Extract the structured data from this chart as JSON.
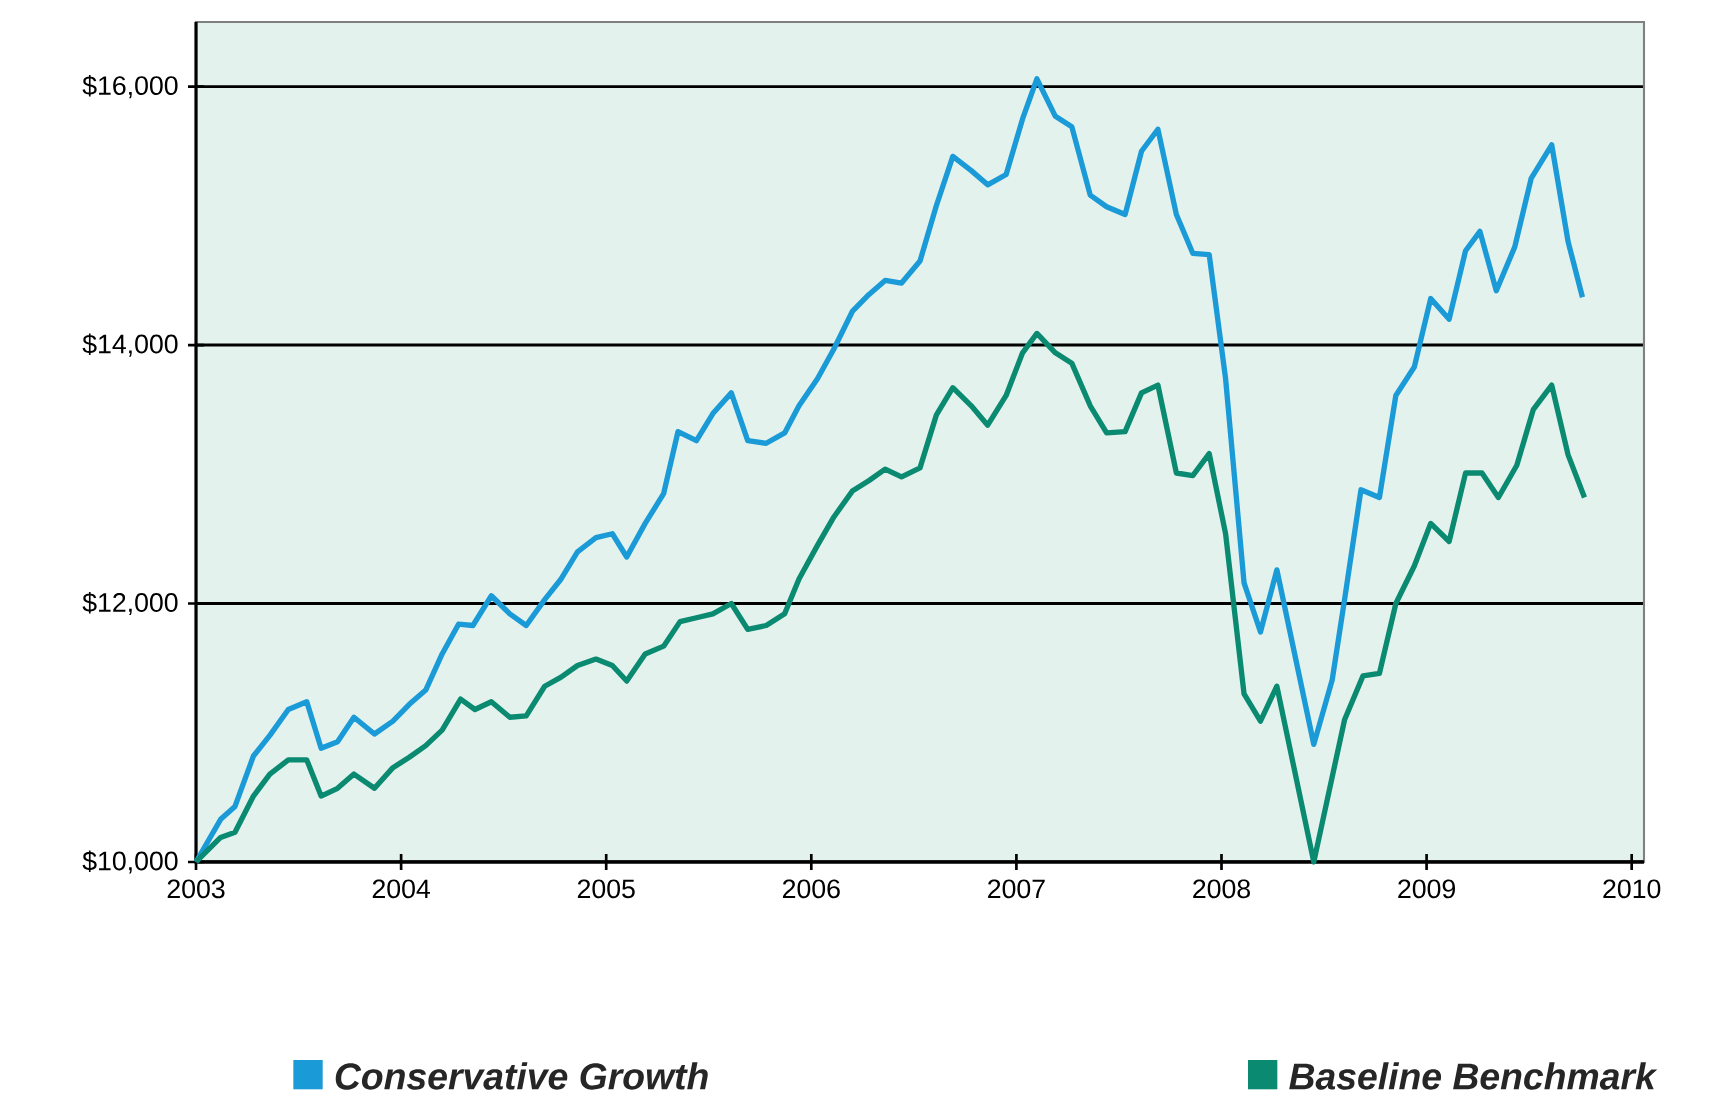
{
  "chart_data": {
    "type": "line",
    "xlim": [
      2003,
      2010.06
    ],
    "ylim": [
      10000,
      16500
    ],
    "xticks": [
      2003,
      2004,
      2005,
      2006,
      2007,
      2008,
      2009,
      2010
    ],
    "yticks": [
      {
        "value": 10000,
        "label": "$10,000"
      },
      {
        "value": 12000,
        "label": "$12,000"
      },
      {
        "value": 14000,
        "label": "$14,000"
      },
      {
        "value": 16000,
        "label": "$16,000"
      }
    ],
    "grid": "y",
    "legend": "bottom",
    "marker": "none",
    "line_style": "solid",
    "series": [
      {
        "name": "Conservative Growth",
        "color": "#1a9ad6",
        "x": [
          2003.0,
          2003.12,
          2003.19,
          2003.28,
          2003.36,
          2003.45,
          2003.54,
          2003.61,
          2003.69,
          2003.77,
          2003.87,
          2003.96,
          2004.04,
          2004.12,
          2004.2,
          2004.28,
          2004.35,
          2004.44,
          2004.53,
          2004.61,
          2004.7,
          2004.78,
          2004.86,
          2004.95,
          2005.03,
          2005.1,
          2005.19,
          2005.28,
          2005.35,
          2005.44,
          2005.52,
          2005.61,
          2005.69,
          2005.78,
          2005.87,
          2005.94,
          2006.03,
          2006.11,
          2006.2,
          2006.28,
          2006.36,
          2006.44,
          2006.53,
          2006.61,
          2006.69,
          2006.78,
          2006.86,
          2006.95,
          2007.03,
          2007.1,
          2007.19,
          2007.27,
          2007.36,
          2007.44,
          2007.53,
          2007.61,
          2007.69,
          2007.78,
          2007.86,
          2007.94,
          2008.02,
          2008.11,
          2008.19,
          2008.27,
          2008.45,
          2008.54,
          2008.6,
          2008.68,
          2008.77,
          2008.85,
          2008.94,
          2009.02,
          2009.11,
          2009.19,
          2009.26,
          2009.34,
          2009.43,
          2009.51,
          2009.61,
          2009.69,
          2009.76
        ],
        "values": [
          10000,
          10330,
          10430,
          10820,
          10980,
          11180,
          11240,
          10880,
          10930,
          11120,
          10990,
          11090,
          11220,
          11330,
          11610,
          11840,
          11830,
          12060,
          11920,
          11830,
          12030,
          12190,
          12400,
          12510,
          12540,
          12360,
          12620,
          12850,
          13330,
          13260,
          13470,
          13630,
          13260,
          13240,
          13320,
          13530,
          13740,
          13970,
          14260,
          14390,
          14500,
          14480,
          14650,
          15080,
          15460,
          15350,
          15240,
          15320,
          15750,
          16060,
          15770,
          15690,
          15160,
          15070,
          15010,
          15500,
          15670,
          15010,
          14710,
          14700,
          13740,
          12160,
          11780,
          12260,
          10910,
          11410,
          12030,
          12880,
          12820,
          13610,
          13830,
          14360,
          14200,
          14730,
          14880,
          14420,
          14760,
          15290,
          15550,
          14800,
          14370
        ]
      },
      {
        "name": "Baseline Benchmark",
        "color": "#0a8a70",
        "x": [
          2003.0,
          2003.12,
          2003.19,
          2003.28,
          2003.36,
          2003.45,
          2003.54,
          2003.61,
          2003.69,
          2003.77,
          2003.87,
          2003.96,
          2004.04,
          2004.12,
          2004.2,
          2004.29,
          2004.36,
          2004.44,
          2004.53,
          2004.61,
          2004.7,
          2004.78,
          2004.86,
          2004.95,
          2005.03,
          2005.1,
          2005.19,
          2005.28,
          2005.36,
          2005.44,
          2005.52,
          2005.61,
          2005.69,
          2005.78,
          2005.87,
          2005.94,
          2006.03,
          2006.11,
          2006.2,
          2006.28,
          2006.36,
          2006.44,
          2006.53,
          2006.61,
          2006.69,
          2006.78,
          2006.86,
          2006.95,
          2007.03,
          2007.1,
          2007.19,
          2007.27,
          2007.36,
          2007.44,
          2007.53,
          2007.61,
          2007.69,
          2007.78,
          2007.86,
          2007.94,
          2008.02,
          2008.11,
          2008.19,
          2008.27,
          2008.45,
          2008.6,
          2008.69,
          2008.77,
          2008.85,
          2008.94,
          2009.02,
          2009.11,
          2009.19,
          2009.27,
          2009.35,
          2009.44,
          2009.52,
          2009.61,
          2009.69,
          2009.77
        ],
        "values": [
          10000,
          10190,
          10230,
          10510,
          10680,
          10790,
          10790,
          10510,
          10570,
          10680,
          10570,
          10730,
          10810,
          10900,
          11020,
          11260,
          11180,
          11240,
          11120,
          11130,
          11360,
          11430,
          11520,
          11570,
          11520,
          11400,
          11610,
          11670,
          11860,
          11890,
          11920,
          12000,
          11800,
          11830,
          11920,
          12190,
          12450,
          12670,
          12870,
          12950,
          13040,
          12980,
          13050,
          13460,
          13670,
          13530,
          13380,
          13610,
          13940,
          14090,
          13940,
          13860,
          13530,
          13320,
          13330,
          13630,
          13690,
          13010,
          12990,
          13160,
          12540,
          11300,
          11090,
          11360,
          10000,
          11100,
          11440,
          11460,
          12000,
          12290,
          12620,
          12480,
          13010,
          13010,
          12820,
          13070,
          13500,
          13690,
          13150,
          12820
        ]
      }
    ]
  }
}
